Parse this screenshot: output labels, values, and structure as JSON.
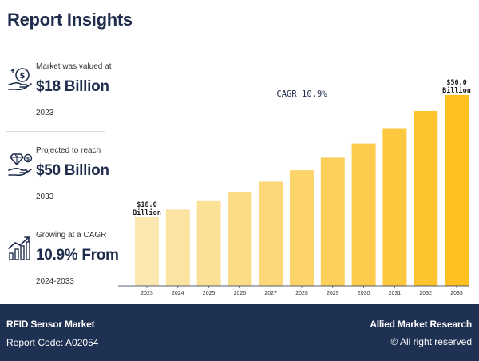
{
  "header": {
    "title": "Report Insights"
  },
  "stats": [
    {
      "label": "Market was valued at",
      "value": "$18 Billion",
      "year": "2023",
      "icon": "money-hand-icon"
    },
    {
      "label": "Projected to reach",
      "value": "$50 Billion",
      "year": "2033",
      "icon": "diamond-hand-icon"
    },
    {
      "label": "Growing at a CAGR",
      "value": "10.9% From",
      "year": "2024-2033",
      "icon": "growth-chart-icon"
    }
  ],
  "chart_data": {
    "type": "bar",
    "annotation": "CAGR 10.9%",
    "categories": [
      "2023",
      "2024",
      "2025",
      "2026",
      "2027",
      "2028",
      "2029",
      "2030",
      "2031",
      "2032",
      "2033"
    ],
    "values": [
      18.0,
      20.0,
      22.2,
      24.6,
      27.3,
      30.3,
      33.6,
      37.3,
      41.3,
      45.8,
      50.0
    ],
    "data_labels": [
      {
        "index": 0,
        "line1": "$18.0",
        "line2": "Billion"
      },
      {
        "index": 10,
        "line1": "$50.0",
        "line2": "Billion"
      }
    ],
    "colors": [
      "#fbe7b0",
      "#fbe3a2",
      "#fbe095",
      "#fcdc86",
      "#fcd878",
      "#fcd46a",
      "#fdd05b",
      "#fdcc4c",
      "#fec83e",
      "#fec430",
      "#ffc020"
    ],
    "ylim": [
      0,
      55
    ],
    "grid": false
  },
  "footer": {
    "market_name": "RFID Sensor Market",
    "report_code": "Report Code: A02054",
    "publisher": "Allied Market Research",
    "rights": "© All right reserved"
  }
}
